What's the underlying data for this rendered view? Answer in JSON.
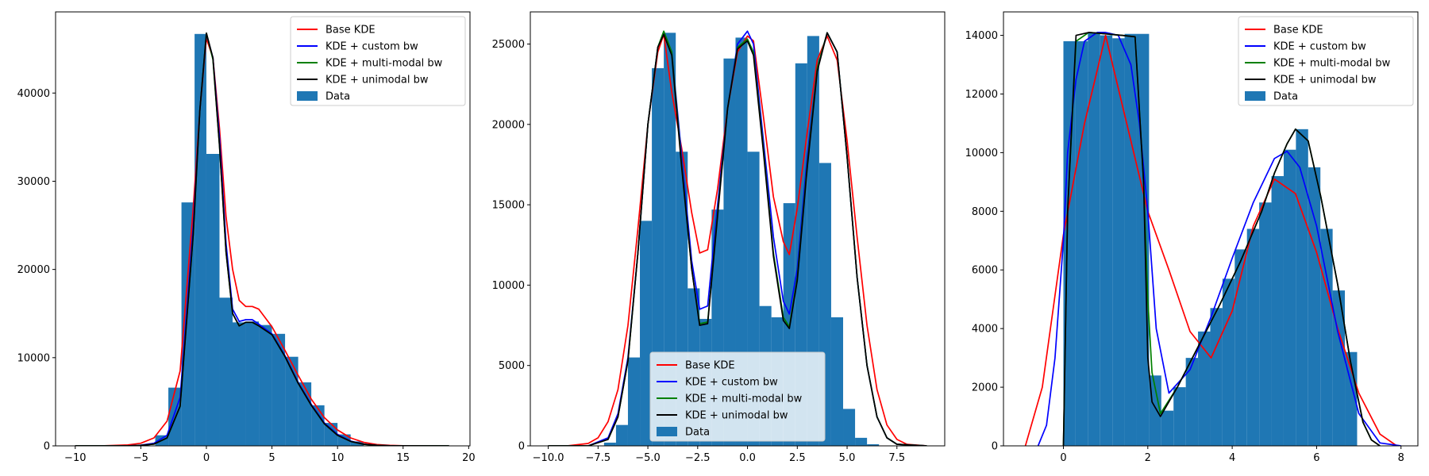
{
  "colors": {
    "hist": "#1f77b4",
    "base": "#ff0000",
    "custom": "#0000ff",
    "multi": "#008000",
    "unimodal": "#000000"
  },
  "legend_labels": [
    "Base KDE",
    "KDE + custom bw",
    "KDE + multi-modal bw",
    "KDE + unimodal bw",
    "Data"
  ],
  "chart_data": [
    {
      "type": "bar",
      "title": "",
      "xlabel": "",
      "ylabel": "",
      "xlim": [
        -11.5,
        20.1
      ],
      "ylim": [
        0,
        49200
      ],
      "xticks": [
        -10,
        -5,
        0,
        5,
        10,
        15,
        20
      ],
      "xtick_labels": [
        "−10",
        "−5",
        "0",
        "5",
        "10",
        "15",
        "20"
      ],
      "yticks": [
        0,
        10000,
        20000,
        30000,
        40000
      ],
      "ytick_labels": [
        "0",
        "10000",
        "20000",
        "30000",
        "40000"
      ],
      "legend_position": "upper right",
      "histogram": {
        "name": "Data",
        "bin_edges": [
          -3.9,
          -2.9,
          -1.9,
          -0.9,
          0.0,
          1.0,
          2.0,
          3.0,
          4.0,
          5.0,
          6.0,
          7.0,
          8.0,
          9.0,
          10.0,
          11.0,
          12.0
        ],
        "counts": [
          1200,
          6600,
          27600,
          46700,
          33100,
          16800,
          14000,
          14100,
          13700,
          12700,
          10100,
          7200,
          4600,
          2600,
          1300,
          500
        ]
      },
      "series": [
        {
          "name": "Base KDE",
          "x": [
            -10,
            -8,
            -6,
            -5,
            -4,
            -3,
            -2,
            -1,
            -0.5,
            0,
            0.5,
            1,
            1.5,
            2,
            2.5,
            3,
            3.5,
            4,
            5,
            6,
            7,
            8,
            9,
            10,
            11,
            12,
            13,
            14,
            15,
            18.5
          ],
          "y": [
            0,
            0,
            100,
            300,
            900,
            2800,
            8500,
            27000,
            38000,
            46200,
            44000,
            36000,
            26000,
            20000,
            16500,
            15800,
            15800,
            15500,
            13500,
            10800,
            8000,
            5300,
            3200,
            1800,
            900,
            400,
            150,
            60,
            20,
            0
          ]
        },
        {
          "name": "KDE + custom bw",
          "x": [
            -10,
            -6,
            -5,
            -4,
            -3,
            -2,
            -1,
            -0.5,
            0,
            0.5,
            1,
            1.5,
            2,
            2.5,
            3,
            3.5,
            4,
            5,
            6,
            7,
            8,
            9,
            10,
            11,
            12,
            13,
            14,
            15,
            18.5
          ],
          "y": [
            0,
            0,
            80,
            300,
            1200,
            5500,
            25000,
            38000,
            46700,
            44000,
            35000,
            23000,
            15500,
            14100,
            14300,
            14300,
            13800,
            12700,
            10200,
            7200,
            4700,
            2600,
            1300,
            550,
            200,
            70,
            20,
            5,
            0
          ]
        },
        {
          "name": "KDE + multi-modal bw",
          "x": [
            -10,
            -6,
            -5,
            -4,
            -3,
            -2,
            -1,
            -0.5,
            0,
            0.5,
            1,
            1.5,
            2,
            2.5,
            3,
            3.5,
            4,
            5,
            6,
            7,
            8,
            9,
            10,
            11,
            12,
            13,
            14,
            15,
            18.5
          ],
          "y": [
            0,
            0,
            50,
            200,
            900,
            4500,
            24000,
            38000,
            46800,
            43800,
            34000,
            22000,
            15000,
            13600,
            14000,
            14000,
            13600,
            12600,
            10100,
            7100,
            4600,
            2500,
            1200,
            500,
            180,
            60,
            15,
            5,
            0
          ]
        },
        {
          "name": "KDE + unimodal bw",
          "x": [
            -10,
            -6,
            -5,
            -4,
            -3,
            -2,
            -1,
            -0.5,
            0,
            0.5,
            1,
            1.5,
            2,
            2.5,
            3,
            3.5,
            4,
            5,
            6,
            7,
            8,
            9,
            10,
            11,
            12,
            13,
            14,
            15,
            18.5
          ],
          "y": [
            0,
            0,
            50,
            200,
            900,
            4500,
            24000,
            38000,
            46800,
            44000,
            34000,
            22000,
            15000,
            13600,
            14000,
            14000,
            13600,
            12600,
            10100,
            7100,
            4600,
            2500,
            1200,
            500,
            180,
            60,
            15,
            5,
            0
          ]
        }
      ]
    },
    {
      "type": "bar",
      "title": "",
      "xlabel": "",
      "ylabel": "",
      "xlim": [
        -10.9,
        9.9
      ],
      "ylim": [
        0,
        27000
      ],
      "xticks": [
        -10,
        -7.5,
        -5,
        -2.5,
        0,
        2.5,
        5,
        7.5
      ],
      "xtick_labels": [
        "−10.0",
        "−7.5",
        "−5.0",
        "−2.5",
        "0.0",
        "2.5",
        "5.0",
        "7.5"
      ],
      "yticks": [
        0,
        5000,
        10000,
        15000,
        20000,
        25000
      ],
      "ytick_labels": [
        "0",
        "5000",
        "10000",
        "15000",
        "20000",
        "25000"
      ],
      "legend_position": "lower center",
      "histogram": {
        "name": "Data",
        "bin_edges": [
          -7.2,
          -6.6,
          -6.0,
          -5.4,
          -4.8,
          -4.2,
          -3.6,
          -3.0,
          -2.4,
          -1.8,
          -1.2,
          -0.6,
          0.0,
          0.6,
          1.2,
          1.8,
          2.4,
          3.0,
          3.6,
          4.2,
          4.8,
          5.4,
          6.0,
          6.6,
          7.2
        ],
        "counts": [
          200,
          1300,
          5500,
          14000,
          23500,
          25700,
          18300,
          9800,
          7900,
          14700,
          24100,
          25400,
          18300,
          8700,
          8000,
          15100,
          23800,
          25500,
          17600,
          8000,
          2300,
          500,
          100,
          20
        ]
      },
      "series": [
        {
          "name": "Base KDE",
          "x": [
            -10,
            -9,
            -8,
            -7.5,
            -7,
            -6.5,
            -6,
            -5.5,
            -5,
            -4.5,
            -4.2,
            -3.8,
            -3.3,
            -2.8,
            -2.4,
            -2.0,
            -1.5,
            -1.0,
            -0.5,
            0.0,
            0.3,
            0.8,
            1.3,
            1.8,
            2.1,
            2.5,
            3.0,
            3.5,
            4.0,
            4.5,
            5.0,
            5.5,
            6.0,
            6.5,
            7.0,
            7.5,
            8.0,
            9.0
          ],
          "y": [
            0,
            10,
            150,
            500,
            1500,
            3500,
            7500,
            13500,
            20000,
            24500,
            25600,
            22000,
            18500,
            14500,
            12000,
            12200,
            16000,
            21000,
            24500,
            25500,
            25200,
            20500,
            15500,
            12700,
            11900,
            14800,
            19500,
            24000,
            25500,
            24000,
            19000,
            13000,
            7500,
            3500,
            1300,
            400,
            100,
            0
          ]
        },
        {
          "name": "KDE + custom bw",
          "x": [
            -10,
            -8,
            -7,
            -6.5,
            -6,
            -5.5,
            -5,
            -4.5,
            -4.2,
            -3.8,
            -3.3,
            -2.8,
            -2.4,
            -2.0,
            -1.5,
            -1.0,
            -0.5,
            0.0,
            0.3,
            0.8,
            1.3,
            1.8,
            2.1,
            2.5,
            3.0,
            3.5,
            4.0,
            4.5,
            5.0,
            5.5,
            6.0,
            6.5,
            7.0,
            7.5,
            9.0
          ],
          "y": [
            0,
            0,
            500,
            2000,
            5500,
            12000,
            20000,
            24800,
            25700,
            24500,
            18000,
            11500,
            8500,
            8700,
            15000,
            21000,
            25000,
            25800,
            25000,
            19000,
            13000,
            9000,
            8200,
            11000,
            18000,
            23500,
            25700,
            24500,
            18000,
            10500,
            5000,
            1800,
            500,
            100,
            0
          ]
        },
        {
          "name": "KDE + multi-modal bw",
          "x": [
            -10,
            -8,
            -7,
            -6.5,
            -6,
            -5.5,
            -5,
            -4.5,
            -4.2,
            -3.8,
            -3.3,
            -2.8,
            -2.4,
            -2.0,
            -1.5,
            -1.0,
            -0.5,
            0.0,
            0.3,
            0.8,
            1.3,
            1.8,
            2.1,
            2.5,
            3.0,
            3.5,
            4.0,
            4.5,
            5.0,
            5.5,
            6.0,
            6.5,
            7.0,
            7.5,
            9.0
          ],
          "y": [
            0,
            0,
            400,
            1800,
            5300,
            12000,
            20000,
            24800,
            25800,
            24500,
            17500,
            11000,
            7600,
            7700,
            14500,
            21000,
            24800,
            25300,
            24500,
            18500,
            12000,
            8000,
            7400,
            10500,
            17500,
            23500,
            25700,
            24500,
            18000,
            10500,
            5000,
            1800,
            500,
            100,
            0
          ]
        },
        {
          "name": "KDE + unimodal bw",
          "x": [
            -10,
            -8,
            -7,
            -6.5,
            -6,
            -5.5,
            -5,
            -4.5,
            -4.2,
            -3.8,
            -3.3,
            -2.8,
            -2.4,
            -2.0,
            -1.5,
            -1.0,
            -0.5,
            0.0,
            0.3,
            0.8,
            1.3,
            1.8,
            2.1,
            2.5,
            3.0,
            3.5,
            4.0,
            4.5,
            5.0,
            5.5,
            6.0,
            6.5,
            7.0,
            7.5,
            9.0
          ],
          "y": [
            0,
            0,
            400,
            1800,
            5300,
            12000,
            20000,
            24800,
            25600,
            24300,
            17300,
            11000,
            7500,
            7600,
            14300,
            21000,
            24700,
            25200,
            24300,
            18300,
            11800,
            7800,
            7300,
            10300,
            17300,
            23300,
            25700,
            24500,
            18000,
            10500,
            5000,
            1800,
            500,
            100,
            0
          ]
        }
      ]
    },
    {
      "type": "bar",
      "title": "",
      "xlabel": "",
      "ylabel": "",
      "xlim": [
        -1.42,
        8.4
      ],
      "ylim": [
        0,
        14800
      ],
      "xticks": [
        0,
        2,
        4,
        6,
        8
      ],
      "xtick_labels": [
        "0",
        "2",
        "4",
        "6",
        "8"
      ],
      "yticks": [
        0,
        2000,
        4000,
        6000,
        8000,
        10000,
        12000,
        14000
      ],
      "ytick_labels": [
        "0",
        "2000",
        "4000",
        "6000",
        "8000",
        "10000",
        "12000",
        "14000"
      ],
      "legend_position": "upper right",
      "histogram": {
        "name": "Data",
        "bin_edges": [
          0.0,
          0.29,
          0.58,
          0.87,
          1.16,
          1.45,
          1.74,
          2.03,
          2.32,
          2.61,
          2.9,
          3.19,
          3.48,
          3.77,
          4.06,
          4.35,
          4.64,
          4.93,
          5.22,
          5.51,
          5.8,
          6.09,
          6.38,
          6.67,
          6.96
        ],
        "counts": [
          13800,
          13800,
          14100,
          14000,
          13900,
          14050,
          14050,
          2400,
          1200,
          2000,
          3000,
          3900,
          4700,
          5700,
          6700,
          7400,
          8300,
          9200,
          10100,
          10800,
          9500,
          7400,
          5300,
          3200,
          1100
        ]
      },
      "series": [
        {
          "name": "Base KDE",
          "x": [
            -0.9,
            -0.5,
            0,
            0.5,
            1.0,
            1.5,
            2.0,
            2.5,
            3.0,
            3.5,
            4.0,
            4.5,
            5.0,
            5.5,
            6.0,
            6.5,
            7.0,
            7.5,
            7.9
          ],
          "y": [
            0,
            2000,
            7200,
            11000,
            14000,
            11000,
            8000,
            6000,
            3900,
            3000,
            4600,
            7500,
            9100,
            8600,
            6600,
            4000,
            1800,
            400,
            0
          ]
        },
        {
          "name": "KDE + custom bw",
          "x": [
            -0.6,
            -0.4,
            -0.2,
            0.0,
            0.1,
            0.3,
            0.5,
            0.8,
            1.0,
            1.3,
            1.6,
            1.8,
            2.0,
            2.2,
            2.5,
            3.0,
            3.5,
            4.0,
            4.5,
            5.0,
            5.3,
            5.6,
            6.0,
            6.5,
            7.0,
            7.5,
            8.0
          ],
          "y": [
            0,
            700,
            3000,
            7000,
            10000,
            12500,
            13800,
            14100,
            14100,
            14000,
            13000,
            11000,
            8000,
            4000,
            1800,
            2600,
            4400,
            6400,
            8300,
            9800,
            10050,
            9500,
            7500,
            3900,
            1100,
            100,
            0
          ]
        },
        {
          "name": "KDE + multi-modal bw",
          "x": [
            0,
            0.1,
            0.3,
            0.6,
            1.0,
            1.4,
            1.7,
            1.9,
            2.0,
            2.1,
            2.3,
            2.7,
            3.2,
            3.7,
            4.2,
            4.7,
            5.0,
            5.3,
            5.5,
            5.8,
            6.1,
            6.5,
            6.8,
            7.1,
            7.3,
            7.5
          ],
          "y": [
            0,
            8000,
            13800,
            14100,
            14050,
            14000,
            13950,
            9000,
            5000,
            2500,
            1100,
            2000,
            3400,
            4800,
            6300,
            8000,
            9300,
            10300,
            10800,
            10400,
            8500,
            5500,
            2900,
            800,
            200,
            0
          ]
        },
        {
          "name": "KDE + unimodal bw",
          "x": [
            0,
            0.1,
            0.3,
            0.6,
            1.0,
            1.4,
            1.7,
            1.9,
            2.0,
            2.1,
            2.3,
            2.7,
            3.2,
            3.7,
            4.2,
            4.7,
            5.0,
            5.3,
            5.5,
            5.8,
            6.1,
            6.5,
            6.8,
            7.1,
            7.3,
            7.5
          ],
          "y": [
            0,
            8000,
            14000,
            14100,
            14050,
            14000,
            13950,
            9000,
            3000,
            1500,
            1000,
            2000,
            3400,
            4800,
            6300,
            8000,
            9300,
            10300,
            10800,
            10400,
            8500,
            5500,
            2900,
            800,
            200,
            0
          ]
        }
      ]
    }
  ]
}
